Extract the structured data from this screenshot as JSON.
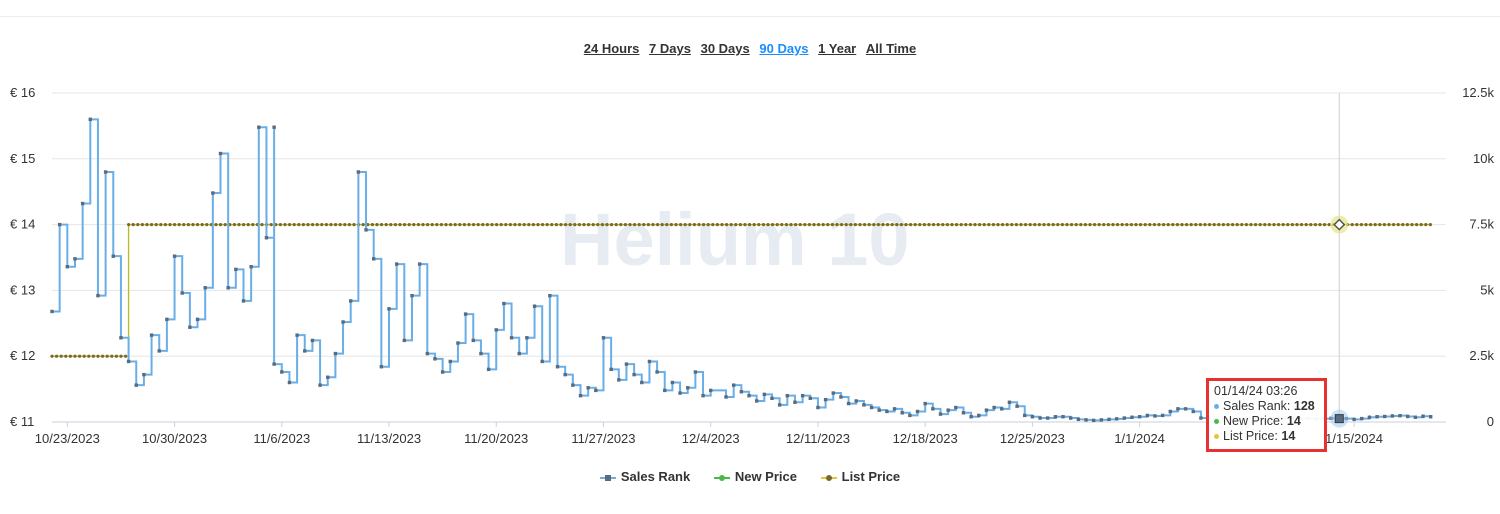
{
  "range_selector": [
    "24 Hours",
    "7 Days",
    "30 Days",
    "90 Days",
    "1 Year",
    "All Time"
  ],
  "range_selected": "90 Days",
  "watermark": "Helium 10",
  "colors": {
    "sales_rank": "#6aaee8",
    "sales_rank_marker": "#5b6b7c",
    "new_price": "#4cb84c",
    "list_price": "#e4c43a",
    "list_price_marker": "#7a6a2a",
    "grid": "#e6e6e6",
    "tooltip_border": "#e83232",
    "active_range": "#1a8cff"
  },
  "tooltip": {
    "title": "01/14/24 03:26",
    "rows": [
      {
        "label": "Sales Rank:",
        "value": "128",
        "color": "#6aaee8"
      },
      {
        "label": "New Price:",
        "value": "14",
        "color": "#4cb84c"
      },
      {
        "label": "List Price:",
        "value": "14",
        "color": "#e4c43a"
      }
    ]
  },
  "legend": [
    {
      "name": "Sales Rank",
      "icon": "square-marker"
    },
    {
      "name": "New Price",
      "icon": "circle-marker"
    },
    {
      "name": "List Price",
      "icon": "circle-marker"
    }
  ],
  "chart_data": {
    "type": "line",
    "x_axis": {
      "range": [
        "2023-10-22",
        "2024-01-21"
      ],
      "ticks": [
        {
          "date": "2023-10-23",
          "label": "10/23/2023"
        },
        {
          "date": "2023-10-30",
          "label": "10/30/2023"
        },
        {
          "date": "2023-11-06",
          "label": "11/6/2023"
        },
        {
          "date": "2023-11-13",
          "label": "11/13/2023"
        },
        {
          "date": "2023-11-20",
          "label": "11/20/2023"
        },
        {
          "date": "2023-11-27",
          "label": "11/27/2023"
        },
        {
          "date": "2023-12-04",
          "label": "12/4/2023"
        },
        {
          "date": "2023-12-11",
          "label": "12/11/2023"
        },
        {
          "date": "2023-12-18",
          "label": "12/18/2023"
        },
        {
          "date": "2023-12-25",
          "label": "12/25/2023"
        },
        {
          "date": "2024-01-01",
          "label": "1/1/2024"
        },
        {
          "date": "2024-01-15",
          "label": "1/15/2024"
        }
      ]
    },
    "y_left": {
      "range": [
        11,
        16
      ],
      "ticks": [
        "€ 16",
        "€ 15",
        "€ 14",
        "€ 13",
        "€ 12",
        "€ 11"
      ],
      "tick_values": [
        16,
        15,
        14,
        13,
        12,
        11
      ]
    },
    "y_right": {
      "range": [
        0,
        12500
      ],
      "ticks": [
        "12.5k",
        "10k",
        "7.5k",
        "5k",
        "2.5k",
        "0"
      ],
      "tick_values": [
        12500,
        10000,
        7500,
        5000,
        2500,
        0
      ]
    },
    "grid": true,
    "legend_position": "bottom-center",
    "crosshair_date": "2024-01-14",
    "series": [
      {
        "name": "Sales Rank",
        "axis": "right",
        "step": true,
        "points": [
          [
            "2023-10-22",
            4200
          ],
          [
            "2023-10-22",
            7500
          ],
          [
            "2023-10-23",
            5900
          ],
          [
            "2023-10-23",
            6200
          ],
          [
            "2023-10-24",
            8300
          ],
          [
            "2023-10-24",
            11500
          ],
          [
            "2023-10-25",
            4800
          ],
          [
            "2023-10-25",
            9500
          ],
          [
            "2023-10-26",
            6300
          ],
          [
            "2023-10-26",
            3200
          ],
          [
            "2023-10-27",
            2300
          ],
          [
            "2023-10-27",
            1400
          ],
          [
            "2023-10-28",
            1800
          ],
          [
            "2023-10-28",
            3300
          ],
          [
            "2023-10-29",
            2700
          ],
          [
            "2023-10-29",
            3900
          ],
          [
            "2023-10-30",
            6300
          ],
          [
            "2023-10-30",
            4900
          ],
          [
            "2023-10-31",
            3600
          ],
          [
            "2023-10-31",
            3900
          ],
          [
            "2023-11-01",
            5100
          ],
          [
            "2023-11-01",
            8700
          ],
          [
            "2023-11-02",
            10200
          ],
          [
            "2023-11-02",
            5100
          ],
          [
            "2023-11-03",
            5800
          ],
          [
            "2023-11-03",
            4600
          ],
          [
            "2023-11-04",
            5900
          ],
          [
            "2023-11-04",
            11200
          ],
          [
            "2023-11-05",
            7000
          ],
          [
            "2023-11-05",
            11200
          ],
          [
            "2023-11-05",
            2200
          ],
          [
            "2023-11-06",
            1900
          ],
          [
            "2023-11-06",
            1500
          ],
          [
            "2023-11-07",
            3300
          ],
          [
            "2023-11-07",
            2700
          ],
          [
            "2023-11-08",
            3100
          ],
          [
            "2023-11-08",
            1400
          ],
          [
            "2023-11-09",
            1700
          ],
          [
            "2023-11-09",
            2600
          ],
          [
            "2023-11-10",
            3800
          ],
          [
            "2023-11-10",
            4600
          ],
          [
            "2023-11-11",
            9500
          ],
          [
            "2023-11-11",
            7300
          ],
          [
            "2023-11-12",
            6200
          ],
          [
            "2023-11-12",
            2100
          ],
          [
            "2023-11-13",
            4300
          ],
          [
            "2023-11-13",
            6000
          ],
          [
            "2023-11-14",
            3100
          ],
          [
            "2023-11-14",
            4800
          ],
          [
            "2023-11-15",
            6000
          ],
          [
            "2023-11-15",
            2600
          ],
          [
            "2023-11-16",
            2400
          ],
          [
            "2023-11-16",
            1900
          ],
          [
            "2023-11-17",
            2300
          ],
          [
            "2023-11-17",
            3000
          ],
          [
            "2023-11-18",
            4100
          ],
          [
            "2023-11-18",
            3100
          ],
          [
            "2023-11-19",
            2600
          ],
          [
            "2023-11-19",
            2000
          ],
          [
            "2023-11-20",
            3500
          ],
          [
            "2023-11-20",
            4500
          ],
          [
            "2023-11-21",
            3200
          ],
          [
            "2023-11-21",
            2600
          ],
          [
            "2023-11-22",
            3200
          ],
          [
            "2023-11-22",
            4400
          ],
          [
            "2023-11-23",
            2300
          ],
          [
            "2023-11-23",
            4800
          ],
          [
            "2023-11-24",
            2100
          ],
          [
            "2023-11-24",
            1800
          ],
          [
            "2023-11-25",
            1400
          ],
          [
            "2023-11-25",
            1000
          ],
          [
            "2023-11-26",
            1300
          ],
          [
            "2023-11-26",
            1200
          ],
          [
            "2023-11-27",
            3200
          ],
          [
            "2023-11-27",
            2000
          ],
          [
            "2023-11-28",
            1600
          ],
          [
            "2023-11-28",
            2200
          ],
          [
            "2023-11-29",
            1800
          ],
          [
            "2023-11-29",
            1500
          ],
          [
            "2023-11-30",
            2300
          ],
          [
            "2023-11-30",
            1900
          ],
          [
            "2023-12-01",
            1200
          ],
          [
            "2023-12-01",
            1500
          ],
          [
            "2023-12-02",
            1100
          ],
          [
            "2023-12-02",
            1300
          ],
          [
            "2023-12-03",
            1900
          ],
          [
            "2023-12-03",
            1000
          ],
          [
            "2023-12-04",
            1200
          ],
          [
            "2023-12-05",
            950
          ],
          [
            "2023-12-05",
            1400
          ],
          [
            "2023-12-06",
            1150
          ],
          [
            "2023-12-06",
            1000
          ],
          [
            "2023-12-07",
            800
          ],
          [
            "2023-12-07",
            1050
          ],
          [
            "2023-12-08",
            900
          ],
          [
            "2023-12-08",
            650
          ],
          [
            "2023-12-09",
            1000
          ],
          [
            "2023-12-09",
            750
          ],
          [
            "2023-12-10",
            1000
          ],
          [
            "2023-12-10",
            900
          ],
          [
            "2023-12-11",
            550
          ],
          [
            "2023-12-11",
            850
          ],
          [
            "2023-12-12",
            1100
          ],
          [
            "2023-12-12",
            950
          ],
          [
            "2023-12-13",
            700
          ],
          [
            "2023-12-13",
            800
          ],
          [
            "2023-12-14",
            650
          ],
          [
            "2023-12-14",
            550
          ],
          [
            "2023-12-15",
            450
          ],
          [
            "2023-12-15",
            400
          ],
          [
            "2023-12-16",
            500
          ],
          [
            "2023-12-16",
            350
          ],
          [
            "2023-12-17",
            250
          ],
          [
            "2023-12-17",
            400
          ],
          [
            "2023-12-18",
            700
          ],
          [
            "2023-12-18",
            500
          ],
          [
            "2023-12-19",
            300
          ],
          [
            "2023-12-19",
            450
          ],
          [
            "2023-12-20",
            550
          ],
          [
            "2023-12-20",
            350
          ],
          [
            "2023-12-21",
            200
          ],
          [
            "2023-12-21",
            250
          ],
          [
            "2023-12-22",
            450
          ],
          [
            "2023-12-22",
            550
          ],
          [
            "2023-12-23",
            500
          ],
          [
            "2023-12-23",
            750
          ],
          [
            "2023-12-24",
            600
          ],
          [
            "2023-12-24",
            250
          ],
          [
            "2023-12-25",
            200
          ],
          [
            "2023-12-25",
            150
          ],
          [
            "2023-12-26",
            150
          ],
          [
            "2023-12-26",
            200
          ],
          [
            "2023-12-27",
            200
          ],
          [
            "2023-12-27",
            150
          ],
          [
            "2023-12-28",
            100
          ],
          [
            "2023-12-28",
            80
          ],
          [
            "2023-12-29",
            60
          ],
          [
            "2023-12-29",
            80
          ],
          [
            "2023-12-30",
            100
          ],
          [
            "2023-12-30",
            120
          ],
          [
            "2023-12-31",
            150
          ],
          [
            "2023-12-31",
            180
          ],
          [
            "2024-01-01",
            200
          ],
          [
            "2024-01-01",
            250
          ],
          [
            "2024-01-02",
            230
          ],
          [
            "2024-01-02",
            250
          ],
          [
            "2024-01-03",
            400
          ],
          [
            "2024-01-03",
            500
          ],
          [
            "2024-01-04",
            500
          ],
          [
            "2024-01-04",
            400
          ],
          [
            "2024-01-05",
            150
          ],
          [
            "2024-01-05",
            130
          ],
          [
            "2024-01-06",
            120
          ],
          [
            "2024-01-06",
            110
          ],
          [
            "2024-01-07",
            100
          ],
          [
            "2024-01-07",
            120
          ],
          [
            "2024-01-08",
            150
          ],
          [
            "2024-01-08",
            140
          ],
          [
            "2024-01-09",
            130
          ],
          [
            "2024-01-09",
            150
          ],
          [
            "2024-01-10",
            180
          ],
          [
            "2024-01-10",
            160
          ],
          [
            "2024-01-11",
            150
          ],
          [
            "2024-01-11",
            140
          ],
          [
            "2024-01-12",
            130
          ],
          [
            "2024-01-12",
            120
          ],
          [
            "2024-01-13",
            130
          ],
          [
            "2024-01-13",
            140
          ],
          [
            "2024-01-14",
            128
          ],
          [
            "2024-01-14",
            128
          ],
          [
            "2024-01-15",
            100
          ],
          [
            "2024-01-15",
            130
          ],
          [
            "2024-01-16",
            180
          ],
          [
            "2024-01-16",
            200
          ],
          [
            "2024-01-17",
            210
          ],
          [
            "2024-01-17",
            230
          ],
          [
            "2024-01-18",
            240
          ],
          [
            "2024-01-18",
            210
          ],
          [
            "2024-01-19",
            180
          ],
          [
            "2024-01-19",
            220
          ],
          [
            "2024-01-20",
            200
          ]
        ]
      },
      {
        "name": "New Price",
        "axis": "left",
        "step": true,
        "points": [
          [
            "2023-10-22",
            12
          ],
          [
            "2023-10-27",
            12
          ],
          [
            "2023-10-27",
            14
          ],
          [
            "2024-01-20",
            14
          ]
        ]
      },
      {
        "name": "List Price",
        "axis": "left",
        "step": true,
        "points": [
          [
            "2023-10-22",
            12
          ],
          [
            "2023-10-27",
            12
          ],
          [
            "2023-10-27",
            14
          ],
          [
            "2024-01-20",
            14
          ]
        ]
      }
    ]
  }
}
